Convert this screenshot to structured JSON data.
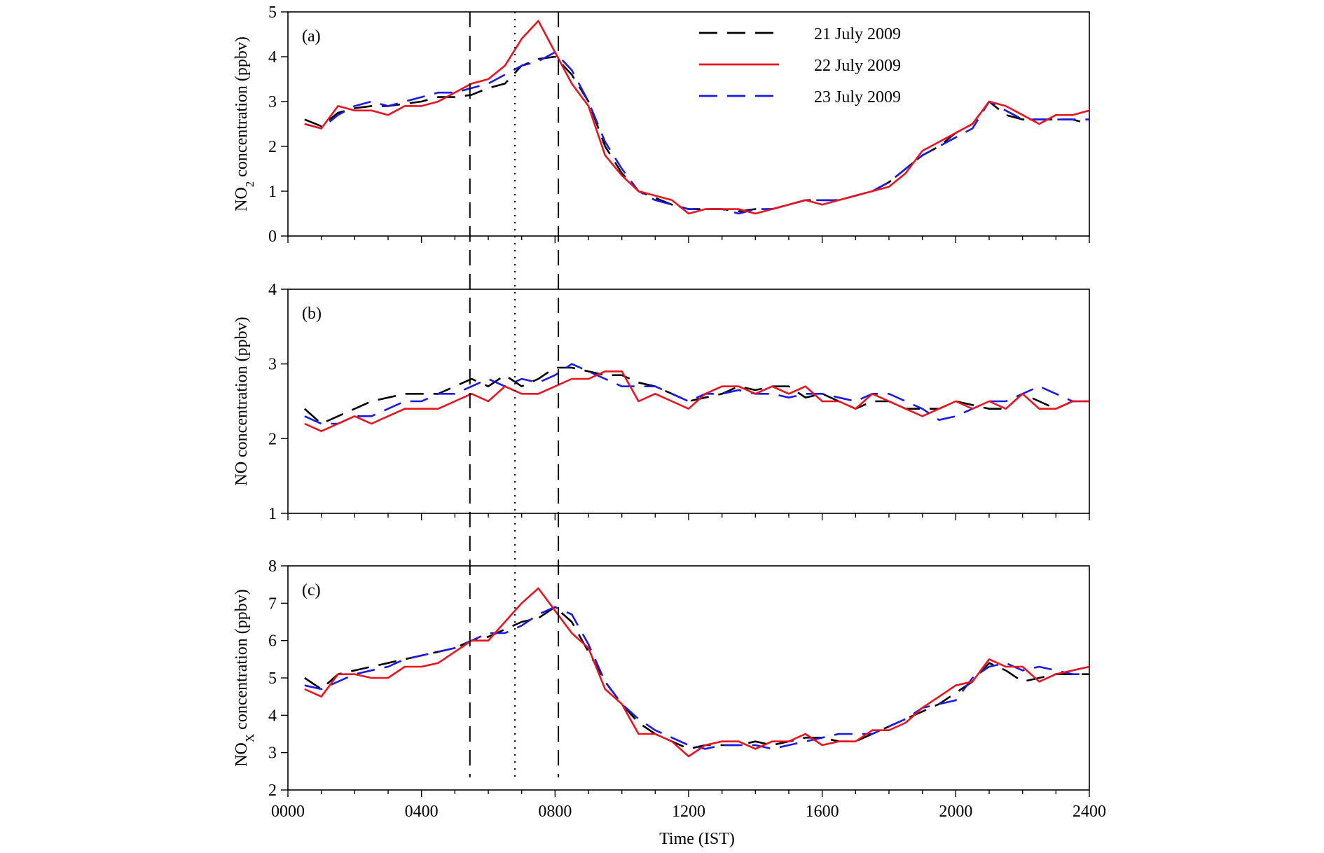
{
  "chart_data": {
    "type": "line",
    "x": [
      50,
      100,
      150,
      200,
      250,
      300,
      350,
      400,
      450,
      500,
      550,
      600,
      650,
      700,
      750,
      800,
      850,
      900,
      950,
      1000,
      1050,
      1100,
      1150,
      1200,
      1250,
      1300,
      1350,
      1400,
      1450,
      1500,
      1550,
      1600,
      1650,
      1700,
      1750,
      1800,
      1850,
      1900,
      1950,
      2000,
      2050,
      2100,
      2150,
      2200,
      2250,
      2300,
      2350,
      2400
    ],
    "xlabel": "Time (IST)",
    "xlim": [
      0,
      2400
    ],
    "xticks": [
      0,
      400,
      800,
      1200,
      1600,
      2000,
      2400
    ],
    "xtick_labels": [
      "0000",
      "0400",
      "0800",
      "1200",
      "1600",
      "2000",
      "2400"
    ],
    "reference_lines": [
      {
        "x": 545,
        "style": "dashed"
      },
      {
        "x": 680,
        "style": "dotted"
      },
      {
        "x": 810,
        "style": "dashed"
      }
    ],
    "legend": {
      "placement": "top-right of panel (a)",
      "entries": [
        {
          "label": "21 July 2009",
          "color": "#000000",
          "style": "long-dash"
        },
        {
          "label": "22 July 2009",
          "color": "#e8141e",
          "style": "solid"
        },
        {
          "label": "23 July 2009",
          "color": "#1a1ae6",
          "style": "long-dash"
        }
      ]
    },
    "panels": [
      {
        "id": "a",
        "panel_label": "(a)",
        "ylabel_main": "NO",
        "ylabel_sub": "2",
        "ylabel_tail": " concentration (ppbv)",
        "ylim": [
          0,
          5
        ],
        "yticks": [
          0,
          1,
          2,
          3,
          4,
          5
        ],
        "series": [
          {
            "name": "21 July 2009",
            "color": "#000000",
            "style": "dash",
            "values": [
              2.6,
              2.45,
              2.75,
              2.85,
              2.9,
              2.9,
              2.95,
              3.0,
              3.1,
              3.1,
              3.15,
              3.3,
              3.4,
              3.8,
              3.95,
              4.0,
              3.6,
              3.0,
              2.0,
              1.4,
              1.0,
              0.85,
              0.7,
              0.6,
              0.6,
              0.6,
              0.55,
              0.6,
              0.6,
              0.7,
              0.8,
              0.8,
              0.8,
              0.9,
              1.0,
              1.2,
              1.5,
              1.8,
              2.0,
              2.3,
              2.5,
              3.0,
              2.7,
              2.6,
              2.6,
              2.6,
              2.6,
              2.5
            ]
          },
          {
            "name": "22 July 2009",
            "color": "#e8141e",
            "style": "solid",
            "values": [
              2.5,
              2.4,
              2.9,
              2.8,
              2.8,
              2.7,
              2.9,
              2.9,
              3.0,
              3.2,
              3.4,
              3.5,
              3.8,
              4.4,
              4.8,
              4.1,
              3.4,
              2.9,
              1.8,
              1.35,
              1.0,
              0.9,
              0.8,
              0.5,
              0.6,
              0.6,
              0.6,
              0.5,
              0.6,
              0.7,
              0.8,
              0.7,
              0.8,
              0.9,
              1.0,
              1.1,
              1.4,
              1.9,
              2.1,
              2.3,
              2.5,
              3.0,
              2.9,
              2.7,
              2.5,
              2.7,
              2.7,
              2.8
            ]
          },
          {
            "name": "23 July 2009",
            "color": "#1a1ae6",
            "style": "dash",
            "values": [
              2.5,
              2.4,
              2.7,
              2.9,
              3.0,
              2.9,
              3.0,
              3.1,
              3.2,
              3.2,
              3.3,
              3.4,
              3.6,
              3.8,
              3.9,
              4.1,
              3.7,
              3.0,
              2.1,
              1.5,
              1.0,
              0.8,
              0.7,
              0.6,
              0.6,
              0.6,
              0.5,
              0.6,
              0.6,
              0.7,
              0.8,
              0.8,
              0.8,
              0.9,
              1.0,
              1.2,
              1.5,
              1.8,
              2.0,
              2.2,
              2.4,
              3.0,
              2.8,
              2.6,
              2.6,
              2.6,
              2.6,
              2.6
            ]
          }
        ]
      },
      {
        "id": "b",
        "panel_label": "(b)",
        "ylabel_main": "NO",
        "ylabel_sub": "",
        "ylabel_tail": " concentration (ppbv)",
        "ylim": [
          1,
          4
        ],
        "yticks": [
          1,
          2,
          3,
          4
        ],
        "series": [
          {
            "name": "21 July 2009",
            "color": "#000000",
            "style": "dash",
            "values": [
              2.4,
              2.2,
              2.3,
              2.4,
              2.5,
              2.55,
              2.6,
              2.6,
              2.6,
              2.7,
              2.8,
              2.7,
              2.85,
              2.7,
              2.8,
              2.95,
              2.95,
              2.9,
              2.85,
              2.85,
              2.75,
              2.7,
              2.6,
              2.5,
              2.55,
              2.6,
              2.7,
              2.65,
              2.7,
              2.7,
              2.55,
              2.6,
              2.5,
              2.4,
              2.5,
              2.5,
              2.4,
              2.4,
              2.4,
              2.5,
              2.45,
              2.4,
              2.4,
              2.6,
              2.5,
              2.4,
              2.5,
              2.5
            ]
          },
          {
            "name": "22 July 2009",
            "color": "#e8141e",
            "style": "solid",
            "values": [
              2.2,
              2.1,
              2.2,
              2.3,
              2.2,
              2.3,
              2.4,
              2.4,
              2.4,
              2.5,
              2.6,
              2.5,
              2.7,
              2.6,
              2.6,
              2.7,
              2.8,
              2.8,
              2.9,
              2.9,
              2.5,
              2.6,
              2.5,
              2.4,
              2.6,
              2.7,
              2.7,
              2.6,
              2.7,
              2.6,
              2.7,
              2.5,
              2.5,
              2.4,
              2.6,
              2.5,
              2.4,
              2.3,
              2.4,
              2.5,
              2.4,
              2.5,
              2.4,
              2.6,
              2.4,
              2.4,
              2.5,
              2.5
            ]
          },
          {
            "name": "23 July 2009",
            "color": "#1a1ae6",
            "style": "dash",
            "values": [
              2.3,
              2.2,
              2.2,
              2.3,
              2.3,
              2.4,
              2.5,
              2.5,
              2.6,
              2.6,
              2.7,
              2.8,
              2.7,
              2.8,
              2.75,
              2.85,
              3.0,
              2.9,
              2.8,
              2.7,
              2.7,
              2.7,
              2.6,
              2.5,
              2.6,
              2.6,
              2.65,
              2.6,
              2.6,
              2.55,
              2.6,
              2.6,
              2.55,
              2.5,
              2.6,
              2.6,
              2.5,
              2.4,
              2.25,
              2.3,
              2.4,
              2.5,
              2.5,
              2.6,
              2.7,
              2.6,
              2.5,
              2.5
            ]
          }
        ]
      },
      {
        "id": "c",
        "panel_label": "(c)",
        "ylabel_main": "NO",
        "ylabel_sub": "X",
        "ylabel_tail": " concentration (ppbv)",
        "ylim": [
          2,
          8
        ],
        "yticks": [
          2,
          3,
          4,
          5,
          6,
          7,
          8
        ],
        "series": [
          {
            "name": "21 July 2009",
            "color": "#000000",
            "style": "dash",
            "values": [
              5.0,
              4.7,
              5.1,
              5.2,
              5.3,
              5.4,
              5.5,
              5.6,
              5.7,
              5.8,
              6.0,
              6.1,
              6.3,
              6.5,
              6.6,
              6.9,
              6.5,
              5.7,
              4.9,
              4.3,
              3.8,
              3.5,
              3.3,
              3.1,
              3.2,
              3.2,
              3.2,
              3.3,
              3.2,
              3.3,
              3.4,
              3.4,
              3.3,
              3.3,
              3.5,
              3.7,
              3.9,
              4.1,
              4.3,
              4.6,
              4.9,
              5.4,
              5.2,
              4.9,
              5.0,
              5.1,
              5.1,
              5.1
            ]
          },
          {
            "name": "22 July 2009",
            "color": "#e8141e",
            "style": "solid",
            "values": [
              4.7,
              4.5,
              5.1,
              5.1,
              5.0,
              5.0,
              5.3,
              5.3,
              5.4,
              5.7,
              6.0,
              6.0,
              6.5,
              7.0,
              7.4,
              6.8,
              6.2,
              5.8,
              4.7,
              4.3,
              3.5,
              3.5,
              3.3,
              2.9,
              3.2,
              3.3,
              3.3,
              3.1,
              3.3,
              3.3,
              3.5,
              3.2,
              3.3,
              3.3,
              3.6,
              3.6,
              3.8,
              4.2,
              4.5,
              4.8,
              4.9,
              5.5,
              5.3,
              5.3,
              4.9,
              5.1,
              5.2,
              5.3
            ]
          },
          {
            "name": "23 July 2009",
            "color": "#1a1ae6",
            "style": "dash",
            "values": [
              4.8,
              4.7,
              4.9,
              5.1,
              5.2,
              5.3,
              5.5,
              5.6,
              5.7,
              5.8,
              6.0,
              6.2,
              6.2,
              6.4,
              6.7,
              6.9,
              6.7,
              5.9,
              4.9,
              4.3,
              3.9,
              3.6,
              3.4,
              3.2,
              3.1,
              3.2,
              3.2,
              3.2,
              3.1,
              3.2,
              3.3,
              3.4,
              3.5,
              3.5,
              3.5,
              3.7,
              3.9,
              4.2,
              4.3,
              4.4,
              5.0,
              5.3,
              5.4,
              5.2,
              5.3,
              5.2,
              5.1,
              5.1
            ]
          }
        ]
      }
    ]
  }
}
